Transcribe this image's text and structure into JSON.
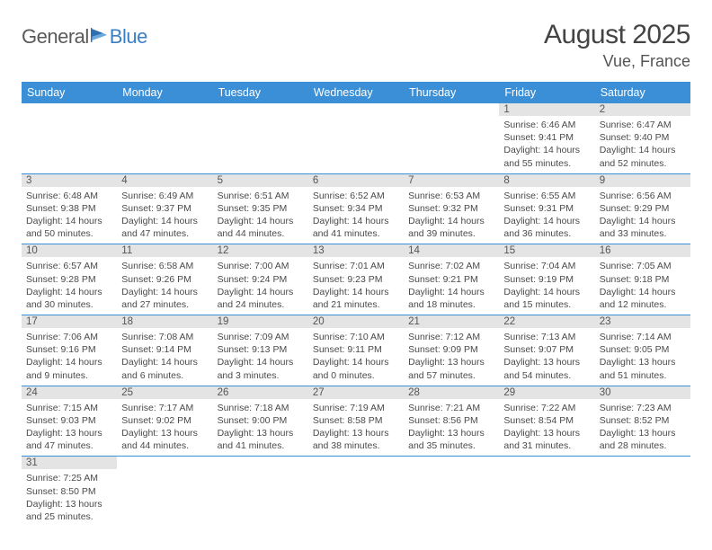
{
  "brand": {
    "general": "General",
    "blue": "Blue"
  },
  "title": "August 2025",
  "location": "Vue, France",
  "colors": {
    "header_bg": "#3b8fd6",
    "header_fg": "#ffffff",
    "daynum_bg": "#e4e4e4",
    "text": "#4a4a4a",
    "rule": "#3b8fd6"
  },
  "weekdays": [
    "Sunday",
    "Monday",
    "Tuesday",
    "Wednesday",
    "Thursday",
    "Friday",
    "Saturday"
  ],
  "weeks": [
    [
      null,
      null,
      null,
      null,
      null,
      {
        "n": "1",
        "sr": "Sunrise: 6:46 AM",
        "ss": "Sunset: 9:41 PM",
        "d1": "Daylight: 14 hours",
        "d2": "and 55 minutes."
      },
      {
        "n": "2",
        "sr": "Sunrise: 6:47 AM",
        "ss": "Sunset: 9:40 PM",
        "d1": "Daylight: 14 hours",
        "d2": "and 52 minutes."
      }
    ],
    [
      {
        "n": "3",
        "sr": "Sunrise: 6:48 AM",
        "ss": "Sunset: 9:38 PM",
        "d1": "Daylight: 14 hours",
        "d2": "and 50 minutes."
      },
      {
        "n": "4",
        "sr": "Sunrise: 6:49 AM",
        "ss": "Sunset: 9:37 PM",
        "d1": "Daylight: 14 hours",
        "d2": "and 47 minutes."
      },
      {
        "n": "5",
        "sr": "Sunrise: 6:51 AM",
        "ss": "Sunset: 9:35 PM",
        "d1": "Daylight: 14 hours",
        "d2": "and 44 minutes."
      },
      {
        "n": "6",
        "sr": "Sunrise: 6:52 AM",
        "ss": "Sunset: 9:34 PM",
        "d1": "Daylight: 14 hours",
        "d2": "and 41 minutes."
      },
      {
        "n": "7",
        "sr": "Sunrise: 6:53 AM",
        "ss": "Sunset: 9:32 PM",
        "d1": "Daylight: 14 hours",
        "d2": "and 39 minutes."
      },
      {
        "n": "8",
        "sr": "Sunrise: 6:55 AM",
        "ss": "Sunset: 9:31 PM",
        "d1": "Daylight: 14 hours",
        "d2": "and 36 minutes."
      },
      {
        "n": "9",
        "sr": "Sunrise: 6:56 AM",
        "ss": "Sunset: 9:29 PM",
        "d1": "Daylight: 14 hours",
        "d2": "and 33 minutes."
      }
    ],
    [
      {
        "n": "10",
        "sr": "Sunrise: 6:57 AM",
        "ss": "Sunset: 9:28 PM",
        "d1": "Daylight: 14 hours",
        "d2": "and 30 minutes."
      },
      {
        "n": "11",
        "sr": "Sunrise: 6:58 AM",
        "ss": "Sunset: 9:26 PM",
        "d1": "Daylight: 14 hours",
        "d2": "and 27 minutes."
      },
      {
        "n": "12",
        "sr": "Sunrise: 7:00 AM",
        "ss": "Sunset: 9:24 PM",
        "d1": "Daylight: 14 hours",
        "d2": "and 24 minutes."
      },
      {
        "n": "13",
        "sr": "Sunrise: 7:01 AM",
        "ss": "Sunset: 9:23 PM",
        "d1": "Daylight: 14 hours",
        "d2": "and 21 minutes."
      },
      {
        "n": "14",
        "sr": "Sunrise: 7:02 AM",
        "ss": "Sunset: 9:21 PM",
        "d1": "Daylight: 14 hours",
        "d2": "and 18 minutes."
      },
      {
        "n": "15",
        "sr": "Sunrise: 7:04 AM",
        "ss": "Sunset: 9:19 PM",
        "d1": "Daylight: 14 hours",
        "d2": "and 15 minutes."
      },
      {
        "n": "16",
        "sr": "Sunrise: 7:05 AM",
        "ss": "Sunset: 9:18 PM",
        "d1": "Daylight: 14 hours",
        "d2": "and 12 minutes."
      }
    ],
    [
      {
        "n": "17",
        "sr": "Sunrise: 7:06 AM",
        "ss": "Sunset: 9:16 PM",
        "d1": "Daylight: 14 hours",
        "d2": "and 9 minutes."
      },
      {
        "n": "18",
        "sr": "Sunrise: 7:08 AM",
        "ss": "Sunset: 9:14 PM",
        "d1": "Daylight: 14 hours",
        "d2": "and 6 minutes."
      },
      {
        "n": "19",
        "sr": "Sunrise: 7:09 AM",
        "ss": "Sunset: 9:13 PM",
        "d1": "Daylight: 14 hours",
        "d2": "and 3 minutes."
      },
      {
        "n": "20",
        "sr": "Sunrise: 7:10 AM",
        "ss": "Sunset: 9:11 PM",
        "d1": "Daylight: 14 hours",
        "d2": "and 0 minutes."
      },
      {
        "n": "21",
        "sr": "Sunrise: 7:12 AM",
        "ss": "Sunset: 9:09 PM",
        "d1": "Daylight: 13 hours",
        "d2": "and 57 minutes."
      },
      {
        "n": "22",
        "sr": "Sunrise: 7:13 AM",
        "ss": "Sunset: 9:07 PM",
        "d1": "Daylight: 13 hours",
        "d2": "and 54 minutes."
      },
      {
        "n": "23",
        "sr": "Sunrise: 7:14 AM",
        "ss": "Sunset: 9:05 PM",
        "d1": "Daylight: 13 hours",
        "d2": "and 51 minutes."
      }
    ],
    [
      {
        "n": "24",
        "sr": "Sunrise: 7:15 AM",
        "ss": "Sunset: 9:03 PM",
        "d1": "Daylight: 13 hours",
        "d2": "and 47 minutes."
      },
      {
        "n": "25",
        "sr": "Sunrise: 7:17 AM",
        "ss": "Sunset: 9:02 PM",
        "d1": "Daylight: 13 hours",
        "d2": "and 44 minutes."
      },
      {
        "n": "26",
        "sr": "Sunrise: 7:18 AM",
        "ss": "Sunset: 9:00 PM",
        "d1": "Daylight: 13 hours",
        "d2": "and 41 minutes."
      },
      {
        "n": "27",
        "sr": "Sunrise: 7:19 AM",
        "ss": "Sunset: 8:58 PM",
        "d1": "Daylight: 13 hours",
        "d2": "and 38 minutes."
      },
      {
        "n": "28",
        "sr": "Sunrise: 7:21 AM",
        "ss": "Sunset: 8:56 PM",
        "d1": "Daylight: 13 hours",
        "d2": "and 35 minutes."
      },
      {
        "n": "29",
        "sr": "Sunrise: 7:22 AM",
        "ss": "Sunset: 8:54 PM",
        "d1": "Daylight: 13 hours",
        "d2": "and 31 minutes."
      },
      {
        "n": "30",
        "sr": "Sunrise: 7:23 AM",
        "ss": "Sunset: 8:52 PM",
        "d1": "Daylight: 13 hours",
        "d2": "and 28 minutes."
      }
    ],
    [
      {
        "n": "31",
        "sr": "Sunrise: 7:25 AM",
        "ss": "Sunset: 8:50 PM",
        "d1": "Daylight: 13 hours",
        "d2": "and 25 minutes."
      },
      null,
      null,
      null,
      null,
      null,
      null
    ]
  ]
}
